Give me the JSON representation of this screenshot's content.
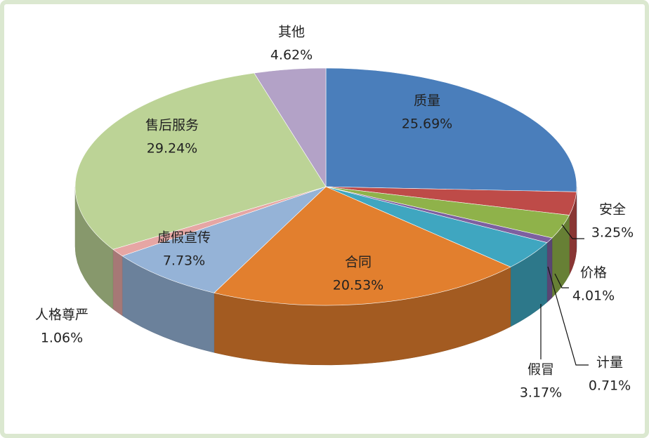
{
  "chart_data": {
    "type": "pie",
    "categories": [
      "质量",
      "假冒",
      "安全",
      "计量",
      "价格",
      "合同",
      "虚假宣传",
      "人格尊严",
      "售后服务",
      "其他"
    ],
    "values": [
      25.69,
      3.17,
      3.25,
      0.71,
      4.01,
      20.53,
      7.73,
      1.06,
      29.24,
      4.62
    ],
    "value_labels": [
      "25.69%",
      "3.17%",
      "3.25%",
      "0.71%",
      "4.01%",
      "20.53%",
      "7.73%",
      "1.06%",
      "29.24%",
      "4.62%"
    ],
    "colors": [
      "#4a7ebb",
      "#be4b48",
      "#8fb24a",
      "#7d60a0",
      "#3fa6c0",
      "#e27f2e",
      "#95b3d7",
      "#e6a6a4",
      "#bcd396",
      "#b3a2c7"
    ]
  }
}
